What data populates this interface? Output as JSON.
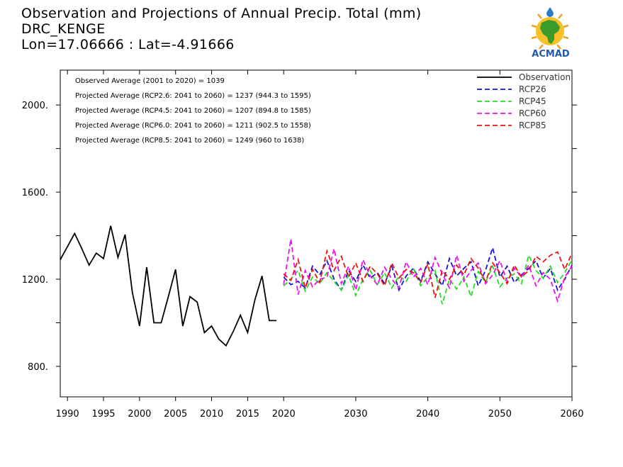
{
  "header": {
    "title": "Observation and Projections of Annual Precip. Total (mm)",
    "location": "DRC_KENGE",
    "coords": "Lon=17.06666 : Lat=-4.91666"
  },
  "logo": {
    "text": "ACMAD",
    "icon": "africa-map-sun-logo"
  },
  "notes": [
    "Observed Average (2001 to 2020) = 1039",
    "Projected Average (RCP2.6: 2041 to 2060) = 1237 (944.3 to 1595)",
    "Projected Average (RCP4.5: 2041 to 2060) = 1207 (894.8 to 1585)",
    "Projected Average (RCP6.0: 2041 to 2060) = 1211 (902.5 to 1558)",
    "Projected Average (RCP8.5: 2041 to 2060) = 1249 (960 to 1638)"
  ],
  "chart_data": {
    "type": "line",
    "title": "Observation and Projections of Annual Precip. Total (mm)",
    "xlim": [
      1989,
      2060
    ],
    "ylim": [
      660,
      2160
    ],
    "x_ticks": [
      1990,
      1995,
      2000,
      2005,
      2010,
      2015,
      2020,
      2030,
      2040,
      2050,
      2060
    ],
    "y_ticks": [
      800,
      1200,
      1600,
      2000
    ],
    "y_tick_labels": [
      "800.",
      "1200.",
      "1600.",
      "2000."
    ],
    "legend_position": "top-right",
    "grid": false,
    "series": [
      {
        "name": "Observation",
        "color": "#000000",
        "dashed": false,
        "x": [
          1989,
          1990,
          1991,
          1992,
          1993,
          1994,
          1995,
          1996,
          1997,
          1998,
          1999,
          2000,
          2001,
          2002,
          2003,
          2004,
          2005,
          2006,
          2007,
          2008,
          2009,
          2010,
          2011,
          2012,
          2013,
          2014,
          2015,
          2016,
          2017,
          2018,
          2019
        ],
        "y": [
          1290,
          1350,
          1410,
          1340,
          1265,
          1320,
          1295,
          1445,
          1300,
          1405,
          1140,
          985,
          1255,
          1000,
          1000,
          1120,
          1245,
          985,
          1120,
          1095,
          955,
          985,
          925,
          895,
          960,
          1035,
          955,
          1105,
          1215,
          1010,
          1010
        ]
      },
      {
        "name": "RCP26",
        "color": "#1414cc",
        "dashed": true,
        "x": [
          2020,
          2021,
          2022,
          2023,
          2024,
          2025,
          2026,
          2027,
          2028,
          2029,
          2030,
          2031,
          2032,
          2033,
          2034,
          2035,
          2036,
          2037,
          2038,
          2039,
          2040,
          2041,
          2042,
          2043,
          2044,
          2045,
          2046,
          2047,
          2048,
          2049,
          2050,
          2051,
          2052,
          2053,
          2054,
          2055,
          2056,
          2057,
          2058,
          2059,
          2060
        ],
        "y": [
          1210,
          1175,
          1190,
          1160,
          1260,
          1220,
          1285,
          1200,
          1150,
          1240,
          1190,
          1265,
          1205,
          1230,
          1180,
          1260,
          1150,
          1215,
          1250,
          1190,
          1280,
          1225,
          1170,
          1295,
          1215,
          1250,
          1280,
          1170,
          1240,
          1345,
          1210,
          1260,
          1185,
          1220,
          1250,
          1285,
          1205,
          1250,
          1150,
          1200,
          1265
        ]
      },
      {
        "name": "RCP45",
        "color": "#22dd22",
        "dashed": true,
        "x": [
          2020,
          2021,
          2022,
          2023,
          2024,
          2025,
          2026,
          2027,
          2028,
          2029,
          2030,
          2031,
          2032,
          2033,
          2034,
          2035,
          2036,
          2037,
          2038,
          2039,
          2040,
          2041,
          2042,
          2043,
          2044,
          2045,
          2046,
          2047,
          2048,
          2049,
          2050,
          2051,
          2052,
          2053,
          2054,
          2055,
          2056,
          2057,
          2058,
          2059,
          2060
        ],
        "y": [
          1170,
          1200,
          1240,
          1145,
          1210,
          1180,
          1230,
          1190,
          1150,
          1220,
          1125,
          1200,
          1240,
          1175,
          1230,
          1160,
          1215,
          1190,
          1250,
          1170,
          1210,
          1240,
          1085,
          1200,
          1155,
          1210,
          1120,
          1235,
          1185,
          1260,
          1165,
          1205,
          1225,
          1180,
          1310,
          1240,
          1205,
          1260,
          1185,
          1230,
          1290
        ]
      },
      {
        "name": "RCP60",
        "color": "#ee11ee",
        "dashed": true,
        "x": [
          2020,
          2021,
          2022,
          2023,
          2024,
          2025,
          2026,
          2027,
          2028,
          2029,
          2030,
          2031,
          2032,
          2033,
          2034,
          2035,
          2036,
          2037,
          2038,
          2039,
          2040,
          2041,
          2042,
          2043,
          2044,
          2045,
          2046,
          2047,
          2048,
          2049,
          2050,
          2051,
          2052,
          2053,
          2054,
          2055,
          2056,
          2057,
          2058,
          2059,
          2060
        ],
        "y": [
          1175,
          1385,
          1130,
          1240,
          1165,
          1200,
          1210,
          1340,
          1180,
          1260,
          1150,
          1290,
          1215,
          1175,
          1255,
          1200,
          1160,
          1280,
          1210,
          1250,
          1175,
          1300,
          1225,
          1160,
          1310,
          1190,
          1240,
          1275,
          1180,
          1220,
          1285,
          1190,
          1250,
          1210,
          1265,
          1170,
          1230,
          1200,
          1100,
          1210,
          1260
        ]
      },
      {
        "name": "RCP85",
        "color": "#ee1111",
        "dashed": true,
        "x": [
          2020,
          2021,
          2022,
          2023,
          2024,
          2025,
          2026,
          2027,
          2028,
          2029,
          2030,
          2031,
          2032,
          2033,
          2034,
          2035,
          2036,
          2037,
          2038,
          2039,
          2040,
          2041,
          2042,
          2043,
          2044,
          2045,
          2046,
          2047,
          2048,
          2049,
          2050,
          2051,
          2052,
          2053,
          2054,
          2055,
          2056,
          2057,
          2058,
          2059,
          2060
        ],
        "y": [
          1225,
          1195,
          1290,
          1160,
          1245,
          1185,
          1330,
          1240,
          1305,
          1210,
          1275,
          1190,
          1260,
          1225,
          1170,
          1275,
          1205,
          1245,
          1230,
          1185,
          1270,
          1115,
          1240,
          1200,
          1265,
          1220,
          1295,
          1250,
          1190,
          1275,
          1230,
          1180,
          1265,
          1210,
          1240,
          1305,
          1280,
          1310,
          1325,
          1245,
          1320
        ]
      }
    ]
  }
}
